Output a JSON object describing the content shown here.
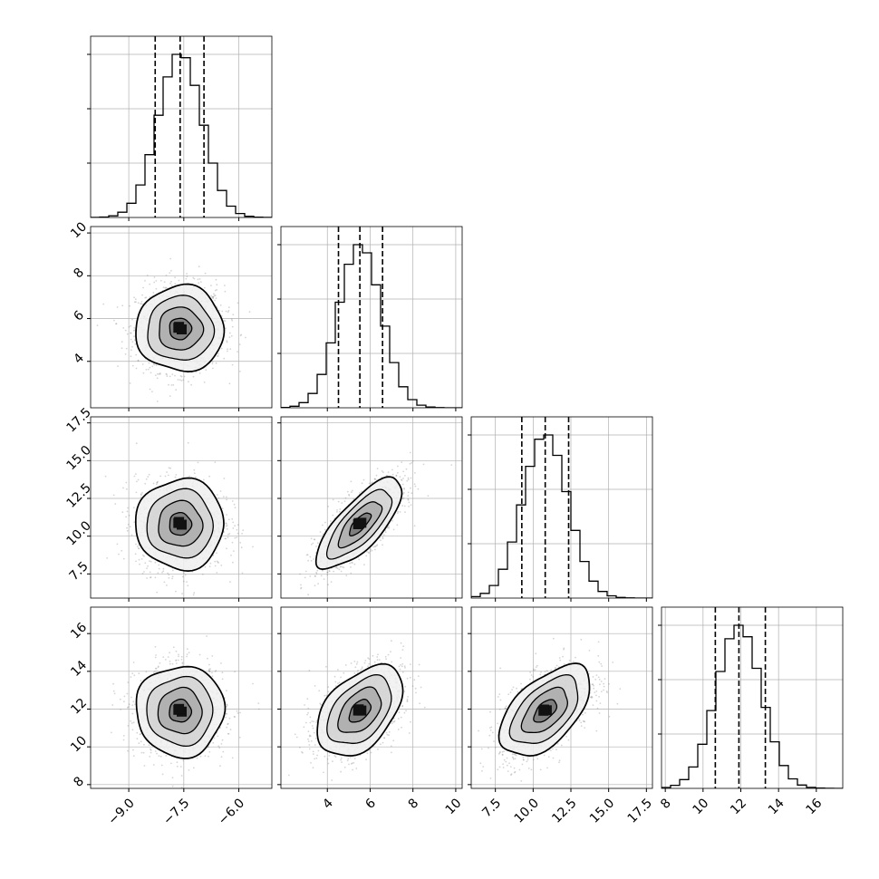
{
  "chart_data": {
    "type": "corner",
    "title": "",
    "parameters": [
      {
        "label": "",
        "range": [
          -10.04,
          -5.1
        ],
        "ticks": [
          -9.0,
          -7.5,
          -6.0
        ],
        "tick_labels": [
          "−9.0",
          "−7.5",
          "−6.0"
        ],
        "mean": -7.6,
        "sigma": 0.6,
        "quantiles": [
          -8.28,
          -7.6,
          -6.95
        ]
      },
      {
        "label": "",
        "range": [
          1.83,
          10.3
        ],
        "ticks": [
          4,
          6,
          8,
          10
        ],
        "tick_labels": [
          "4",
          "6",
          "8",
          "10"
        ],
        "mean": 5.52,
        "sigma": 1.0,
        "quantiles": [
          4.52,
          5.52,
          6.58
        ]
      },
      {
        "label": "",
        "range": [
          5.9,
          17.9
        ],
        "ticks": [
          7.5,
          10.0,
          12.5,
          15.0,
          17.5
        ],
        "tick_labels": [
          "7.5",
          "10.0",
          "12.5",
          "15.0",
          "17.5"
        ],
        "mean": 10.8,
        "sigma": 1.5,
        "quantiles": [
          9.25,
          10.8,
          12.35
        ]
      },
      {
        "label": "",
        "range": [
          7.8,
          17.4
        ],
        "ticks": [
          8,
          10,
          12,
          14,
          16
        ],
        "tick_labels": [
          "8",
          "10",
          "12",
          "14",
          "16"
        ],
        "mean": 11.9,
        "sigma": 1.2,
        "quantiles": [
          10.65,
          11.9,
          13.3
        ]
      }
    ],
    "correlations": [
      [
        1,
        0,
        0,
        0
      ],
      [
        0,
        1,
        0.75,
        0.45
      ],
      [
        0,
        0.75,
        1,
        0.55
      ],
      [
        0,
        0.45,
        0.55,
        1
      ]
    ],
    "contour_levels_sigma": [
      0.5,
      1.0,
      1.5,
      2.0
    ],
    "quantile_lines": "dashed",
    "grid": true,
    "colors": {
      "line": "#000000",
      "grid": "#b0b0b0",
      "points": "#888888"
    }
  }
}
